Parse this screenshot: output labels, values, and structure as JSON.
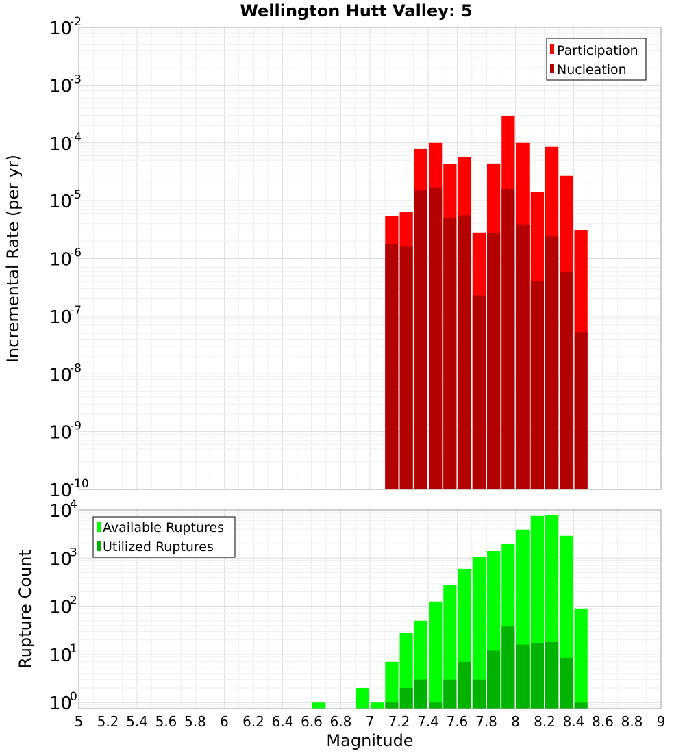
{
  "chart_data": [
    {
      "type": "bar",
      "title": "Wellington Hutt Valley: 5",
      "xlabel": "Magnitude",
      "ylabel": "Incremental Rate (per yr)",
      "yscale": "log",
      "xlim": [
        5,
        9
      ],
      "ylim": [
        1e-10,
        0.01
      ],
      "ytick_exponents": [
        -10,
        -9,
        -8,
        -7,
        -6,
        -5,
        -4,
        -3,
        -2
      ],
      "grid": true,
      "legend_position": "top-right",
      "bar_width": 0.1,
      "x": [
        7.15,
        7.25,
        7.35,
        7.45,
        7.55,
        7.65,
        7.75,
        7.85,
        7.95,
        8.05,
        8.15,
        8.25,
        8.35,
        8.45
      ],
      "series": [
        {
          "name": "Participation",
          "color": "#ff0000",
          "values": [
            5.5e-06,
            6.3e-06,
            8e-05,
            0.0001,
            4.3e-05,
            5.6e-05,
            2.8e-06,
            4.4e-05,
            0.00029,
            0.0001,
            1.4e-05,
            8.5e-05,
            2.7e-05,
            3.1e-06
          ]
        },
        {
          "name": "Nucleation",
          "color": "#b30000",
          "values": [
            1.8e-06,
            1.6e-06,
            1.5e-05,
            1.7e-05,
            5e-06,
            5.6e-06,
            2.3e-07,
            2.7e-06,
            1.6e-05,
            3.9e-06,
            4.1e-07,
            2.4e-06,
            5.8e-07,
            5.3e-08
          ]
        }
      ]
    },
    {
      "type": "bar",
      "xlabel": "Magnitude",
      "ylabel": "Rupture Count",
      "yscale": "log",
      "xlim": [
        5,
        9
      ],
      "ylim": [
        0.75,
        10000
      ],
      "ytick_exponents": [
        0,
        1,
        2,
        3,
        4
      ],
      "xticks": [
        "5",
        "5.2",
        "5.4",
        "5.6",
        "5.8",
        "6",
        "6.2",
        "6.4",
        "6.6",
        "6.8",
        "7",
        "7.2",
        "7.4",
        "7.6",
        "7.8",
        "8",
        "8.2",
        "8.4",
        "8.6",
        "8.8",
        "9"
      ],
      "grid": true,
      "legend_position": "top-left",
      "bar_width": 0.1,
      "series": [
        {
          "name": "Available Ruptures",
          "color": "#00ff00",
          "x": [
            6.65,
            6.95,
            7.05,
            7.15,
            7.25,
            7.35,
            7.45,
            7.55,
            7.65,
            7.75,
            7.85,
            7.95,
            8.05,
            8.15,
            8.25,
            8.35,
            8.45
          ],
          "values": [
            1,
            2,
            1,
            7,
            28,
            50,
            125,
            280,
            600,
            1050,
            1400,
            2000,
            3900,
            7500,
            7900,
            2900,
            90
          ]
        },
        {
          "name": "Utilized Ruptures",
          "color": "#00b300",
          "x": [
            7.15,
            7.25,
            7.35,
            7.45,
            7.55,
            7.65,
            7.75,
            7.85,
            7.95,
            8.05,
            8.15,
            8.25,
            8.35,
            8.45
          ],
          "values": [
            1,
            2,
            3,
            1,
            3,
            7,
            3,
            12,
            38,
            16,
            17,
            18,
            8.5,
            1
          ]
        }
      ]
    }
  ]
}
